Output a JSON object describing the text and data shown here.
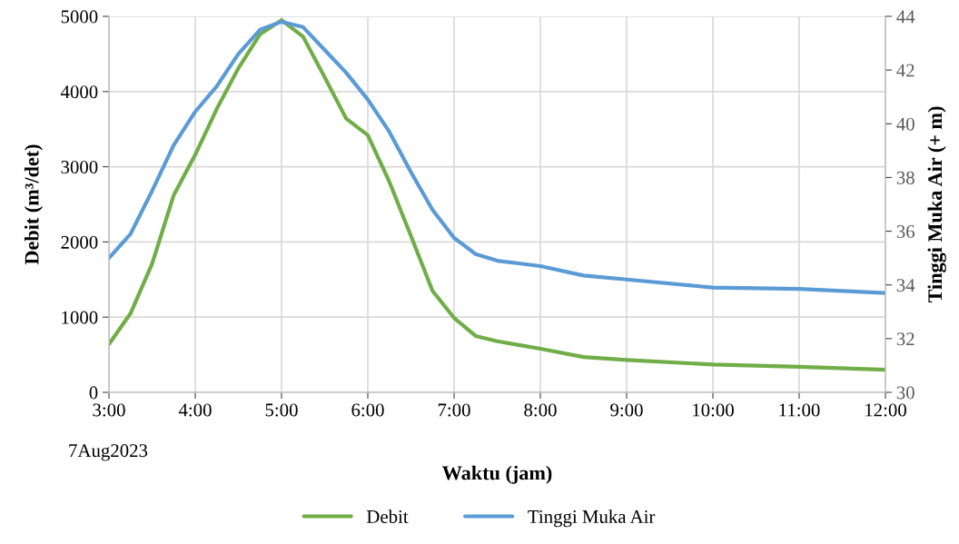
{
  "chart_data": {
    "type": "line",
    "xlabel": "Waktu (jam)",
    "ylabel": "Debit (m³/det)",
    "y2label": "Tinggi Muka Air (+ m)",
    "x": [
      3,
      3.25,
      3.5,
      3.75,
      4,
      4.25,
      4.5,
      4.75,
      5,
      5.25,
      5.5,
      5.75,
      6,
      6.25,
      6.5,
      6.75,
      7,
      7.25,
      7.5,
      7.75,
      8,
      8.5,
      9,
      10,
      11,
      12
    ],
    "series": [
      {
        "name": "Debit",
        "color": "#70ad47",
        "values": [
          640,
          1050,
          1710,
          2620,
          3160,
          3770,
          4310,
          4760,
          4950,
          4730,
          4190,
          3640,
          3420,
          2800,
          2080,
          1350,
          990,
          750,
          680,
          630,
          580,
          470,
          430,
          370,
          340,
          300
        ]
      },
      {
        "name": "Tinggi Muka Air",
        "color": "#5b9bd5",
        "axis": "y2",
        "values": [
          35.0,
          35.9,
          37.5,
          39.2,
          40.45,
          41.4,
          42.6,
          43.5,
          43.8,
          43.6,
          42.75,
          41.9,
          40.9,
          39.7,
          38.2,
          36.8,
          35.75,
          35.15,
          34.9,
          34.8,
          34.7,
          34.35,
          34.2,
          33.9,
          33.85,
          33.7
        ]
      }
    ],
    "xlim": [
      3,
      12
    ],
    "xticks": [
      {
        "value": 3,
        "label": "3:00"
      },
      {
        "value": 4,
        "label": "4:00"
      },
      {
        "value": 5,
        "label": "5:00"
      },
      {
        "value": 6,
        "label": "6:00"
      },
      {
        "value": 7,
        "label": "7:00"
      },
      {
        "value": 8,
        "label": "8:00"
      },
      {
        "value": 9,
        "label": "9:00"
      },
      {
        "value": 10,
        "label": "10:00"
      },
      {
        "value": 11,
        "label": "11:00"
      },
      {
        "value": 12,
        "label": "12:00"
      }
    ],
    "ylim": [
      0,
      5000
    ],
    "yticks": [
      0,
      1000,
      2000,
      3000,
      4000,
      5000
    ],
    "y2lim": [
      30,
      44
    ],
    "y2ticks": [
      30,
      32,
      34,
      36,
      38,
      40,
      42,
      44
    ],
    "grid": true,
    "legend": "bottom",
    "marker": "none",
    "line_style": "solid",
    "annotations": [
      "7Aug2023"
    ]
  }
}
